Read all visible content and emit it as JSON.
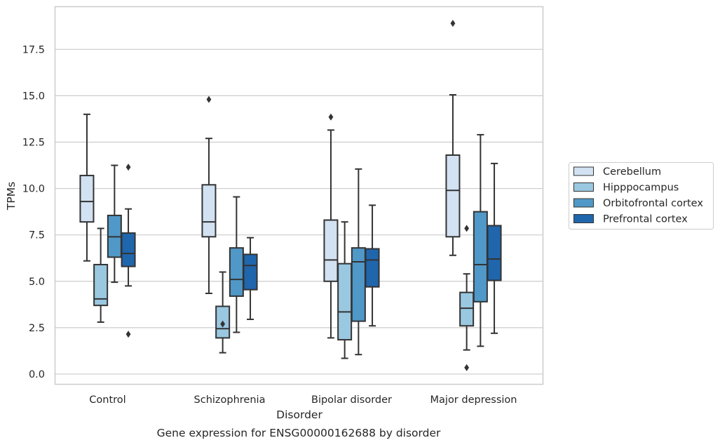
{
  "chart_data": {
    "type": "boxplot",
    "title": "",
    "caption": "Gene expression for ENSG00000162688 by disorder",
    "xlabel": "Disorder",
    "ylabel": "TPMs",
    "ylim": [
      -0.55,
      19.8
    ],
    "yticks": [
      0.0,
      2.5,
      5.0,
      7.5,
      10.0,
      12.5,
      15.0,
      17.5
    ],
    "ytick_labels": [
      "0.0",
      "2.5",
      "5.0",
      "7.5",
      "10.0",
      "12.5",
      "15.0",
      "17.5"
    ],
    "grid": "horizontal",
    "legend_position": "right",
    "categories": [
      "Control",
      "Schizophrenia",
      "Bipolar disorder",
      "Major depression"
    ],
    "series": [
      {
        "name": "Cerebellum",
        "color": "#d2e2f2",
        "boxes": [
          {
            "whislo": 6.1,
            "q1": 8.2,
            "med": 9.3,
            "q3": 10.7,
            "whishi": 14.0,
            "fliers": []
          },
          {
            "whislo": 4.35,
            "q1": 7.4,
            "med": 8.2,
            "q3": 10.2,
            "whishi": 12.7,
            "fliers": [
              14.8
            ]
          },
          {
            "whislo": 1.95,
            "q1": 5.0,
            "med": 6.15,
            "q3": 8.3,
            "whishi": 13.15,
            "fliers": [
              13.85
            ]
          },
          {
            "whislo": 6.4,
            "q1": 7.4,
            "med": 9.9,
            "q3": 11.8,
            "whishi": 15.05,
            "fliers": [
              18.9
            ]
          }
        ]
      },
      {
        "name": "Hipppocampus",
        "color": "#9ac8e0",
        "boxes": [
          {
            "whislo": 2.8,
            "q1": 3.7,
            "med": 4.05,
            "q3": 5.9,
            "whishi": 7.85,
            "fliers": []
          },
          {
            "whislo": 1.15,
            "q1": 1.95,
            "med": 2.45,
            "q3": 3.65,
            "whishi": 5.5,
            "fliers": [
              2.7
            ]
          },
          {
            "whislo": 0.85,
            "q1": 1.85,
            "med": 3.35,
            "q3": 5.95,
            "whishi": 8.2,
            "fliers": []
          },
          {
            "whislo": 1.3,
            "q1": 2.6,
            "med": 3.55,
            "q3": 4.4,
            "whishi": 5.4,
            "fliers": [
              7.85,
              0.35
            ]
          }
        ]
      },
      {
        "name": "Orbitofrontal cortex",
        "color": "#5098c7",
        "boxes": [
          {
            "whislo": 4.95,
            "q1": 6.3,
            "med": 7.4,
            "q3": 8.55,
            "whishi": 11.25,
            "fliers": []
          },
          {
            "whislo": 2.25,
            "q1": 4.2,
            "med": 5.1,
            "q3": 6.8,
            "whishi": 9.55,
            "fliers": []
          },
          {
            "whislo": 1.05,
            "q1": 2.85,
            "med": 6.05,
            "q3": 6.8,
            "whishi": 11.05,
            "fliers": []
          },
          {
            "whislo": 1.5,
            "q1": 3.9,
            "med": 5.9,
            "q3": 8.75,
            "whishi": 12.9,
            "fliers": []
          }
        ]
      },
      {
        "name": "Prefrontal cortex",
        "color": "#2066ac",
        "boxes": [
          {
            "whislo": 4.75,
            "q1": 5.8,
            "med": 6.5,
            "q3": 7.6,
            "whishi": 8.9,
            "fliers": [
              11.15,
              2.15
            ]
          },
          {
            "whislo": 2.95,
            "q1": 4.55,
            "med": 5.85,
            "q3": 6.45,
            "whishi": 7.35,
            "fliers": []
          },
          {
            "whislo": 2.6,
            "q1": 4.7,
            "med": 6.15,
            "q3": 6.75,
            "whishi": 9.1,
            "fliers": []
          },
          {
            "whislo": 2.2,
            "q1": 5.05,
            "med": 6.2,
            "q3": 8.0,
            "whishi": 11.35,
            "fliers": []
          }
        ]
      }
    ],
    "line_color": "#333333",
    "grid_color": "#cccccc"
  }
}
